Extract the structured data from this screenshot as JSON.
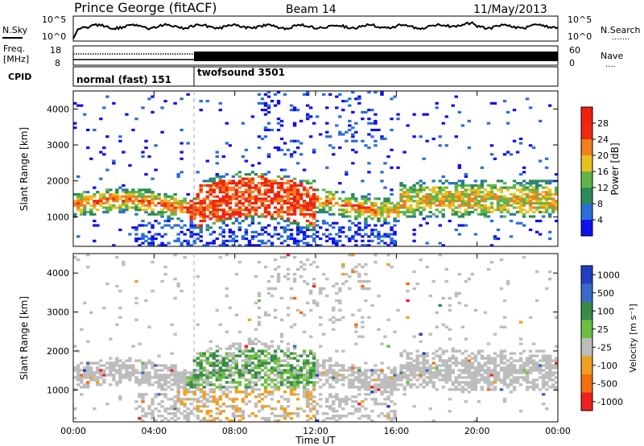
{
  "header": {
    "station": "Prince George (fitACF)",
    "beam": "Beam 14",
    "date": "11/May/2013"
  },
  "top_panels": {
    "nsky": {
      "left_label": "N.Sky",
      "left_ticks": [
        "10^5",
        "10^0"
      ],
      "right_ticks": [
        "10^5",
        "10^0"
      ],
      "right_label": "N.Search",
      "right_marker": "......."
    },
    "freq": {
      "left_label_1": "Freq.",
      "left_label_2": "[MHz]",
      "left_ticks": [
        "18",
        "8"
      ],
      "right_ticks": [
        "60",
        "0"
      ],
      "right_label": "Nave",
      "right_marker": "...."
    },
    "cpid": {
      "label": "CPID",
      "segments": [
        "normal (fast) 151",
        "twofsound 3501"
      ]
    }
  },
  "chart_data": [
    {
      "type": "heatmap",
      "name": "power-panel",
      "ylabel": "Slant Range [km]",
      "xlabel": "",
      "x_ticks": [
        "00:00",
        "04:00",
        "08:00",
        "12:00",
        "16:00",
        "20:00",
        "00:00"
      ],
      "x_range_hours": [
        0,
        24
      ],
      "y_ticks": [
        1000,
        2000,
        3000,
        4000
      ],
      "ylim": [
        180,
        4500
      ],
      "colorbar": {
        "label": "Power [dB]",
        "ticks": [
          "4",
          "8",
          "12",
          "16",
          "20",
          "24",
          "28"
        ],
        "colors": [
          "#1010ee",
          "#2a6fd6",
          "#2e8b57",
          "#5fb54a",
          "#e8c020",
          "#f08020",
          "#ee2a10",
          "#f02010"
        ]
      },
      "notes": "Scatter band near 1000-1600 km throughout the day; strongest power (~28 dB) between ~06:00 and ~12:00 UT"
    },
    {
      "type": "heatmap",
      "name": "velocity-panel",
      "ylabel": "Slant Range [km]",
      "xlabel": "Time UT",
      "x_ticks": [
        "00:00",
        "04:00",
        "08:00",
        "12:00",
        "16:00",
        "20:00",
        "00:00"
      ],
      "x_range_hours": [
        0,
        24
      ],
      "y_ticks": [
        1000,
        2000,
        3000,
        4000
      ],
      "ylim": [
        180,
        4500
      ],
      "colorbar": {
        "label": "Velocity [m s⁻¹]",
        "ticks": [
          "1000",
          "500",
          "100",
          "25",
          "-25",
          "-100",
          "-500",
          "-1000"
        ],
        "colors": [
          "#2040c0",
          "#3a6ac8",
          "#3a8a4a",
          "#6cc040",
          "#bdbdbd",
          "#f0a020",
          "#f07010",
          "#ee2020"
        ]
      },
      "notes": "Mostly ground scatter (grey, |v|<25); positive velocities (green) near 06:00-12:00 at 1000-2000 km"
    }
  ],
  "cpid_change_hour": 6.0
}
